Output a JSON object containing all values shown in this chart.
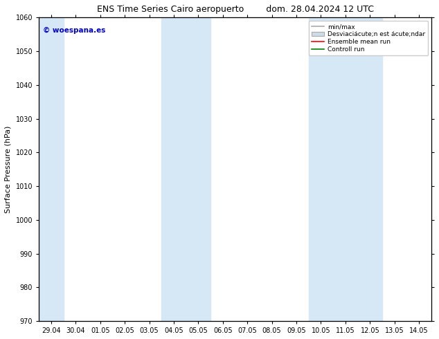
{
  "title_left": "ENS Time Series Cairo aeropuerto",
  "title_right": "dom. 28.04.2024 12 UTC",
  "ylabel": "Surface Pressure (hPa)",
  "ylim": [
    970,
    1060
  ],
  "yticks": [
    970,
    980,
    990,
    1000,
    1010,
    1020,
    1030,
    1040,
    1050,
    1060
  ],
  "x_labels": [
    "29.04",
    "30.04",
    "01.05",
    "02.05",
    "03.05",
    "04.05",
    "05.05",
    "06.05",
    "07.05",
    "08.05",
    "09.05",
    "10.05",
    "11.05",
    "12.05",
    "13.05",
    "14.05"
  ],
  "watermark": "© woespana.es",
  "watermark_color": "#0000cc",
  "background_color": "#ffffff",
  "shaded_band_color": "#d6e8f5",
  "shaded_columns_x": [
    0,
    5,
    6,
    11,
    12,
    13
  ],
  "legend_colors_line": [
    "#aaaaaa",
    "#ff0000",
    "#008000"
  ],
  "legend_patch_color": "#ccdde8",
  "title_fontsize": 9,
  "axis_fontsize": 8,
  "tick_fontsize": 7
}
